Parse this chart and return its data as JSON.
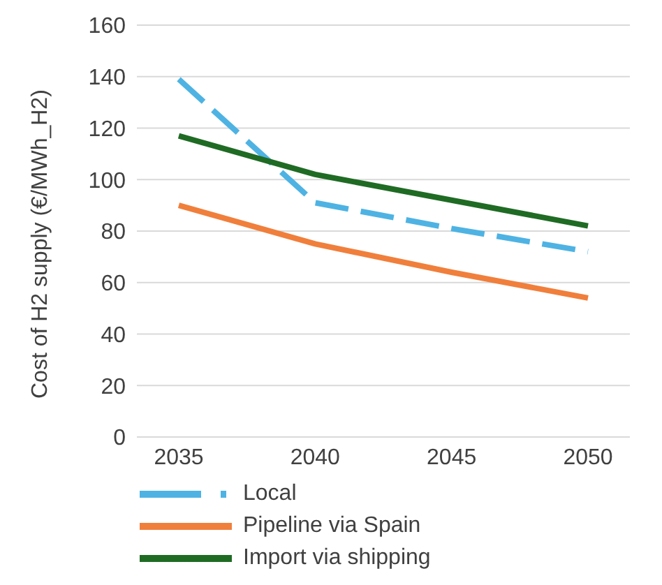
{
  "chart_data": {
    "type": "line",
    "ylabel": "Cost of H2 supply (€/MWh_H2)",
    "categories": [
      "2035",
      "2040",
      "2045",
      "2050"
    ],
    "series": [
      {
        "name": "Local",
        "color": "#4eb3e3",
        "values": [
          139,
          91,
          81,
          72
        ],
        "line_style": "dashed"
      },
      {
        "name": "Pipeline via Spain",
        "color": "#f07f3c",
        "values": [
          90,
          75,
          64,
          54
        ],
        "line_style": "solid"
      },
      {
        "name": "Import via shipping",
        "color": "#1f6b24",
        "values": [
          117,
          102,
          92,
          82
        ],
        "line_style": "solid"
      }
    ],
    "ylim": [
      0,
      160
    ],
    "yticks": [
      0,
      20,
      40,
      60,
      80,
      100,
      120,
      140,
      160
    ],
    "grid": "y",
    "legend": "bottom",
    "marker": "none"
  }
}
